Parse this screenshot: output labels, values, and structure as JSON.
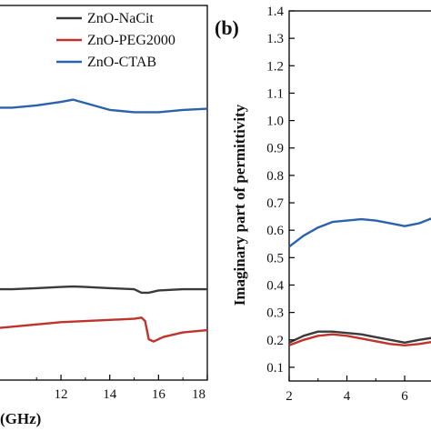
{
  "chart_data": [
    {
      "type": "line",
      "panel_label": "",
      "xlabel": "(GHz)",
      "ylabel": "",
      "xlim": [
        9.5,
        18
      ],
      "x_ticks": [
        12,
        14,
        16,
        18
      ],
      "legend": {
        "placement": "top-right"
      },
      "series": [
        {
          "name": "ZnO-NaCit",
          "color": "#3a3a3a",
          "x": [
            9.5,
            10,
            11,
            12,
            12.5,
            13,
            14,
            15,
            15.3,
            15.6,
            16,
            17,
            18
          ],
          "y": [
            0.7,
            0.7,
            0.705,
            0.71,
            0.712,
            0.71,
            0.705,
            0.7,
            0.685,
            0.685,
            0.695,
            0.7,
            0.7
          ]
        },
        {
          "name": "ZnO-PEG2000",
          "color": "#c0322b",
          "x": [
            9.5,
            10,
            11,
            12,
            13,
            14,
            15,
            15.3,
            15.45,
            15.6,
            15.8,
            16.2,
            17,
            18
          ],
          "y": [
            0.53,
            0.535,
            0.545,
            0.555,
            0.56,
            0.565,
            0.57,
            0.575,
            0.56,
            0.48,
            0.47,
            0.49,
            0.51,
            0.52
          ]
        },
        {
          "name": "ZnO-CTAB",
          "color": "#2a62ad",
          "x": [
            9.5,
            10,
            11,
            12,
            12.5,
            13,
            14,
            15,
            16,
            17,
            18
          ],
          "y": [
            1.5,
            1.5,
            1.51,
            1.525,
            1.535,
            1.52,
            1.49,
            1.48,
            1.48,
            1.49,
            1.495
          ]
        }
      ]
    },
    {
      "type": "line",
      "panel_label": "(b)",
      "xlabel": "",
      "ylabel": "Imaginary part of permittivity",
      "xlim": [
        2,
        7.1
      ],
      "ylim": [
        0.05,
        1.4
      ],
      "x_ticks": [
        2,
        4,
        6
      ],
      "y_ticks": [
        0.1,
        0.2,
        0.3,
        0.4,
        0.5,
        0.6,
        0.7,
        0.8,
        0.9,
        1.0,
        1.1,
        1.2,
        1.3,
        1.4
      ],
      "grid": false,
      "series": [
        {
          "name": "ZnO-NaCit",
          "color": "#3a3a3a",
          "x": [
            2,
            2.5,
            3,
            3.5,
            4,
            4.5,
            5,
            5.5,
            6,
            6.5,
            7.1
          ],
          "y": [
            0.19,
            0.215,
            0.23,
            0.23,
            0.225,
            0.22,
            0.21,
            0.2,
            0.19,
            0.2,
            0.21
          ]
        },
        {
          "name": "ZnO-PEG2000",
          "color": "#c0322b",
          "x": [
            2,
            2.5,
            3,
            3.5,
            4,
            4.5,
            5,
            5.5,
            6,
            6.5,
            7.1
          ],
          "y": [
            0.18,
            0.2,
            0.215,
            0.22,
            0.215,
            0.205,
            0.195,
            0.185,
            0.18,
            0.185,
            0.195
          ]
        },
        {
          "name": "ZnO-CTAB",
          "color": "#2a62ad",
          "x": [
            2,
            2.5,
            3,
            3.5,
            4,
            4.5,
            5,
            5.5,
            6,
            6.5,
            7.1
          ],
          "y": [
            0.54,
            0.58,
            0.61,
            0.63,
            0.635,
            0.64,
            0.635,
            0.625,
            0.615,
            0.625,
            0.65
          ]
        }
      ]
    }
  ]
}
